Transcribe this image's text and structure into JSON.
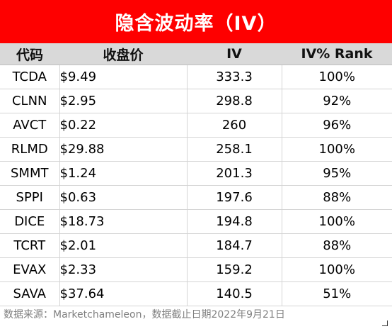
{
  "title": "隐含波动率（IV）",
  "table": {
    "headers": [
      "代码",
      "收盘价",
      "IV",
      "IV% Rank"
    ],
    "rows": [
      [
        "TCDA",
        "$9.49",
        "333.3",
        "100%"
      ],
      [
        "CLNN",
        "$2.95",
        "298.8",
        "92%"
      ],
      [
        "AVCT",
        "$0.22",
        "260",
        "96%"
      ],
      [
        "RLMD",
        "$29.88",
        "258.1",
        "100%"
      ],
      [
        "SMMT",
        "$1.24",
        "201.3",
        "95%"
      ],
      [
        "SPPI",
        "$0.63",
        "197.6",
        "88%"
      ],
      [
        "DICE",
        "$18.73",
        "194.8",
        "100%"
      ],
      [
        "TCRT",
        "$2.01",
        "184.7",
        "88%"
      ],
      [
        "EVAX",
        "$2.33",
        "159.2",
        "100%"
      ],
      [
        "SAVA",
        "$37.64",
        "140.5",
        "51%"
      ]
    ]
  },
  "footer": "数据来源：Marketchameleon，数据截止日期2022年9月21日"
}
